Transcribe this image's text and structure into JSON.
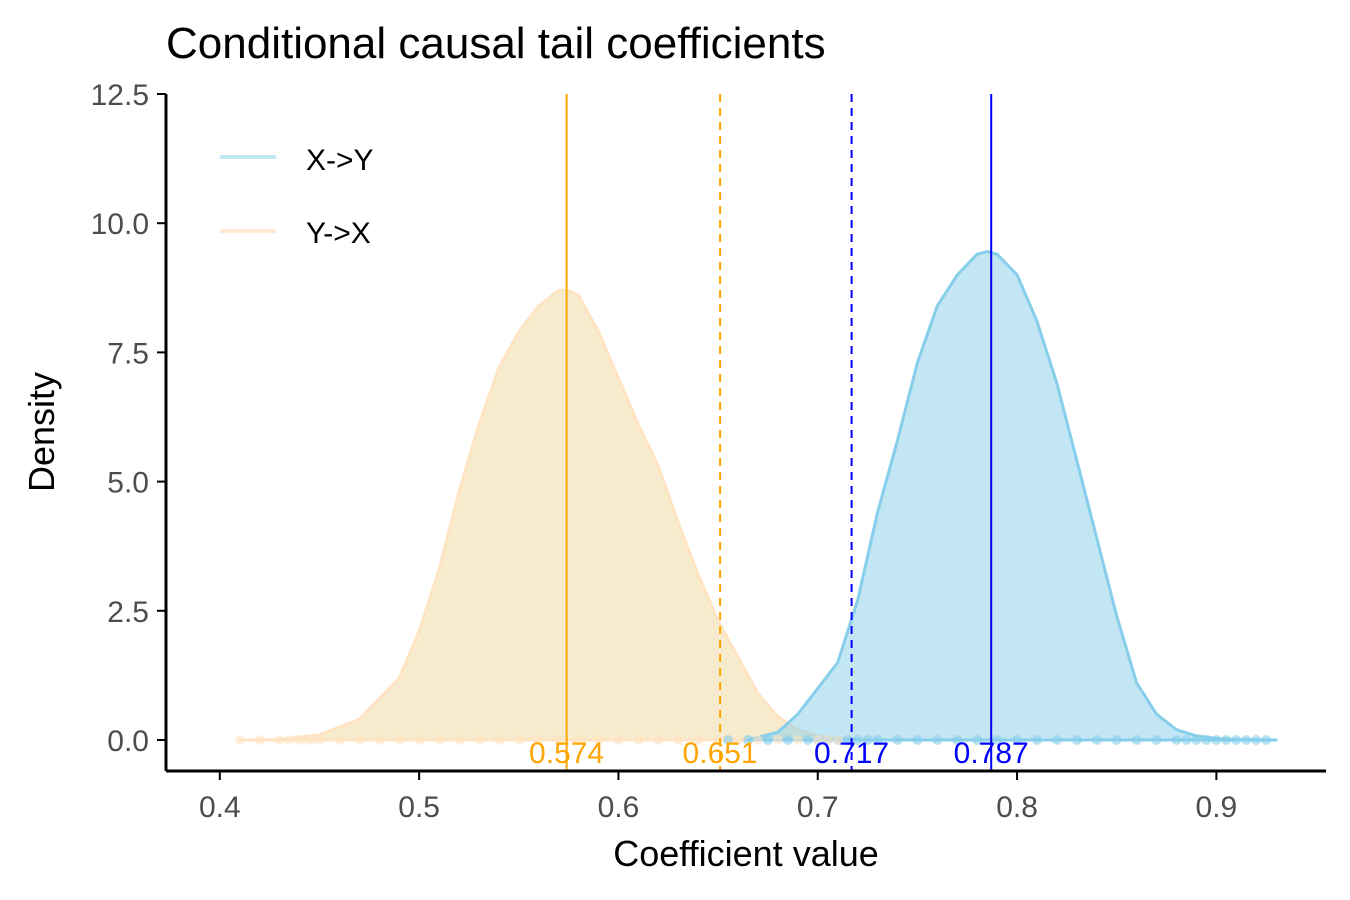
{
  "chart_data": {
    "type": "area",
    "title": "Conditional causal tail coefficients",
    "xlabel": "Coefficient value",
    "ylabel": "Density",
    "xlim": [
      0.373,
      0.955
    ],
    "ylim": [
      -0.6,
      12.5
    ],
    "xticks": [
      {
        "value": 0.4,
        "label": "0.4"
      },
      {
        "value": 0.5,
        "label": "0.5"
      },
      {
        "value": 0.6,
        "label": "0.6"
      },
      {
        "value": 0.7,
        "label": "0.7"
      },
      {
        "value": 0.8,
        "label": "0.8"
      },
      {
        "value": 0.9,
        "label": "0.9"
      }
    ],
    "yticks": [
      {
        "value": 0.0,
        "label": "0.0"
      },
      {
        "value": 2.5,
        "label": "2.5"
      },
      {
        "value": 5.0,
        "label": "5.0"
      },
      {
        "value": 7.5,
        "label": "7.5"
      },
      {
        "value": 10.0,
        "label": "10.0"
      },
      {
        "value": 12.5,
        "label": "12.5"
      }
    ],
    "legend": {
      "position": "top-left"
    },
    "series": [
      {
        "name": "X->Y",
        "fill": "#87ceeb",
        "line": "#87ceeb",
        "x": [
          0.665,
          0.68,
          0.69,
          0.7,
          0.71,
          0.72,
          0.73,
          0.74,
          0.75,
          0.76,
          0.77,
          0.78,
          0.785,
          0.79,
          0.8,
          0.81,
          0.82,
          0.83,
          0.84,
          0.85,
          0.86,
          0.87,
          0.88,
          0.89,
          0.9,
          0.91,
          0.92,
          0.93
        ],
        "y": [
          0.0,
          0.15,
          0.5,
          1.0,
          1.5,
          2.7,
          4.4,
          5.8,
          7.3,
          8.4,
          9.0,
          9.4,
          9.45,
          9.4,
          9.0,
          8.1,
          6.9,
          5.4,
          3.9,
          2.4,
          1.1,
          0.5,
          0.2,
          0.08,
          0.03,
          0.01,
          0.005,
          0.0
        ]
      },
      {
        "name": "Y->X",
        "fill": "#f5e9c4",
        "line": "#ffe4c4",
        "x": [
          0.41,
          0.43,
          0.45,
          0.47,
          0.49,
          0.5,
          0.51,
          0.52,
          0.53,
          0.54,
          0.55,
          0.56,
          0.57,
          0.575,
          0.58,
          0.59,
          0.6,
          0.61,
          0.62,
          0.63,
          0.64,
          0.65,
          0.66,
          0.67,
          0.68,
          0.69,
          0.7,
          0.71,
          0.72,
          0.73
        ],
        "y": [
          0.0,
          0.01,
          0.1,
          0.4,
          1.2,
          2.1,
          3.3,
          4.8,
          6.1,
          7.2,
          7.9,
          8.4,
          8.7,
          8.7,
          8.6,
          7.9,
          7.0,
          6.1,
          5.3,
          4.2,
          3.2,
          2.3,
          1.6,
          0.9,
          0.45,
          0.2,
          0.08,
          0.03,
          0.01,
          0.0
        ]
      }
    ],
    "vlines": [
      {
        "x": 0.574,
        "label": "0.574",
        "color": "#ffa500",
        "style": "solid"
      },
      {
        "x": 0.651,
        "label": "0.651",
        "color": "#ffa500",
        "style": "dashed"
      },
      {
        "x": 0.717,
        "label": "0.717",
        "color": "#0000ff",
        "style": "dashed"
      },
      {
        "x": 0.787,
        "label": "0.787",
        "color": "#0000ff",
        "style": "solid"
      }
    ],
    "rugs": [
      {
        "name": "X->Y",
        "color": "#87ceeb",
        "x": [
          0.655,
          0.665,
          0.675,
          0.685,
          0.695,
          0.7,
          0.705,
          0.71,
          0.715,
          0.72,
          0.725,
          0.73,
          0.74,
          0.75,
          0.76,
          0.77,
          0.78,
          0.79,
          0.8,
          0.81,
          0.82,
          0.83,
          0.84,
          0.85,
          0.86,
          0.87,
          0.88,
          0.885,
          0.89,
          0.895,
          0.9,
          0.905,
          0.91,
          0.915,
          0.92,
          0.925
        ]
      },
      {
        "name": "Y->X",
        "color": "#ffe4c4",
        "x": [
          0.41,
          0.42,
          0.43,
          0.435,
          0.44,
          0.445,
          0.45,
          0.46,
          0.47,
          0.48,
          0.49,
          0.5,
          0.51,
          0.52,
          0.53,
          0.54,
          0.55,
          0.56,
          0.57,
          0.58,
          0.59,
          0.6,
          0.61,
          0.62,
          0.63,
          0.64,
          0.65,
          0.66,
          0.67,
          0.68,
          0.69,
          0.7,
          0.705,
          0.71
        ]
      }
    ]
  }
}
